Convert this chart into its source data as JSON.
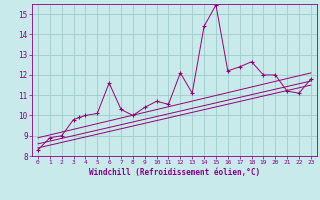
{
  "bg_color": "#c8eaea",
  "line_color": "#990077",
  "grid_color": "#a0caca",
  "xlabel": "Windchill (Refroidissement éolien,°C)",
  "xlabel_color": "#880088",
  "tick_color": "#880088",
  "xlim": [
    -0.5,
    23.5
  ],
  "ylim": [
    8,
    15.5
  ],
  "yticks": [
    8,
    9,
    10,
    11,
    12,
    13,
    14,
    15
  ],
  "xticks": [
    0,
    1,
    2,
    3,
    4,
    5,
    6,
    7,
    8,
    9,
    10,
    11,
    12,
    13,
    14,
    15,
    16,
    17,
    18,
    19,
    20,
    21,
    22,
    23
  ],
  "series": [
    [
      0,
      8.3
    ],
    [
      1,
      8.9
    ],
    [
      2,
      9.0
    ],
    [
      3,
      9.8
    ],
    [
      3.5,
      9.9
    ],
    [
      4,
      10.0
    ],
    [
      5,
      10.1
    ],
    [
      6,
      11.6
    ],
    [
      7,
      10.3
    ],
    [
      8,
      10.0
    ],
    [
      9,
      10.4
    ],
    [
      10,
      10.7
    ],
    [
      11,
      10.55
    ],
    [
      12,
      12.1
    ],
    [
      13,
      11.1
    ],
    [
      14,
      14.4
    ],
    [
      15,
      15.45
    ],
    [
      16,
      12.2
    ],
    [
      17,
      12.4
    ],
    [
      18,
      12.65
    ],
    [
      19,
      12.0
    ],
    [
      20,
      12.0
    ],
    [
      21,
      11.2
    ],
    [
      22,
      11.1
    ],
    [
      23,
      11.8
    ]
  ],
  "trend_lines": [
    [
      [
        0,
        8.9
      ],
      [
        23,
        12.1
      ]
    ],
    [
      [
        0,
        8.6
      ],
      [
        23,
        11.7
      ]
    ],
    [
      [
        0,
        8.4
      ],
      [
        23,
        11.5
      ]
    ]
  ]
}
